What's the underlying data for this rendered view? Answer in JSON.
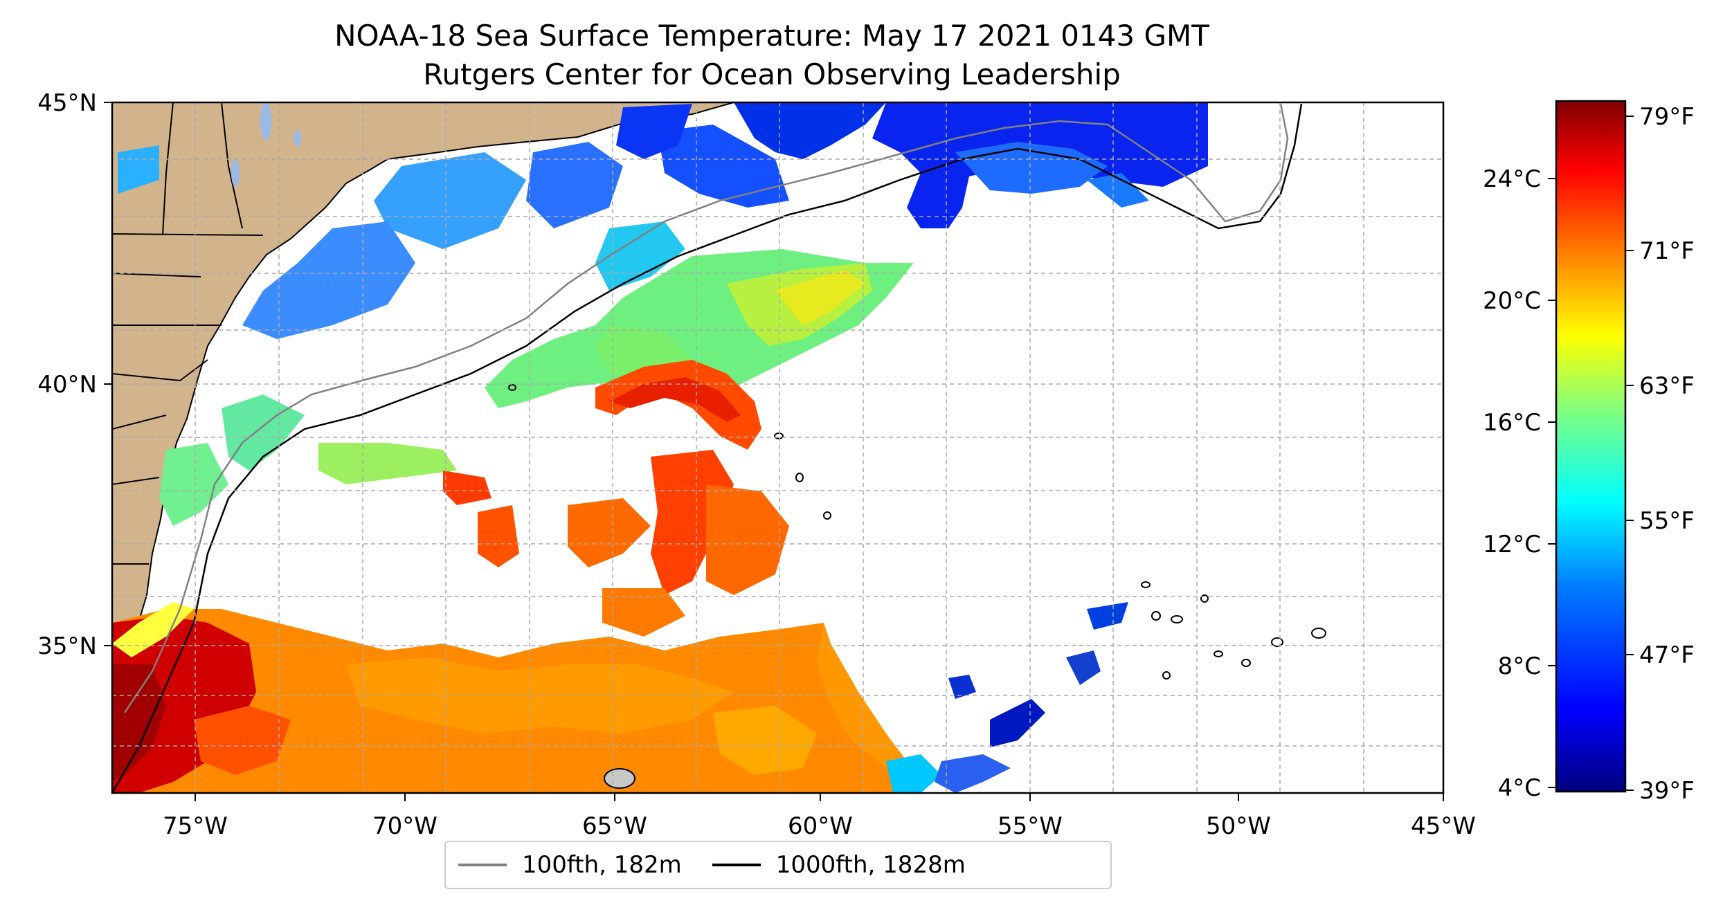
{
  "title": {
    "line1": "NOAA-18 Sea Surface Temperature: May 17 2021 0143 GMT",
    "line2": "Rutgers Center for Ocean Observing Leadership"
  },
  "map": {
    "lon_range": [
      -77,
      -45
    ],
    "lat_range": [
      32.3,
      45
    ],
    "lon_ticks": [
      "75°W",
      "70°W",
      "65°W",
      "60°W",
      "55°W",
      "50°W",
      "45°W"
    ],
    "lat_ticks": [
      "45°N",
      "40°N",
      "35°N"
    ],
    "land_color": "#d2b48c",
    "grid": true,
    "grid_style": "dashed"
  },
  "colorbar": {
    "colormap": "jet",
    "celsius_ticks": [
      "24°C",
      "20°C",
      "16°C",
      "12°C",
      "8°C",
      "4°C"
    ],
    "fahrenheit_ticks": [
      "79°F",
      "71°F",
      "63°F",
      "55°F",
      "47°F",
      "39°F"
    ],
    "colors": [
      "#00007f",
      "#0000ff",
      "#007fff",
      "#00ffff",
      "#7fff7f",
      "#ffff00",
      "#ff7f00",
      "#ff0000",
      "#7f0000"
    ]
  },
  "legend": {
    "items": [
      {
        "label": "100fth, 182m",
        "color": "#808080"
      },
      {
        "label": "1000fth, 1828m",
        "color": "#000000"
      }
    ]
  }
}
